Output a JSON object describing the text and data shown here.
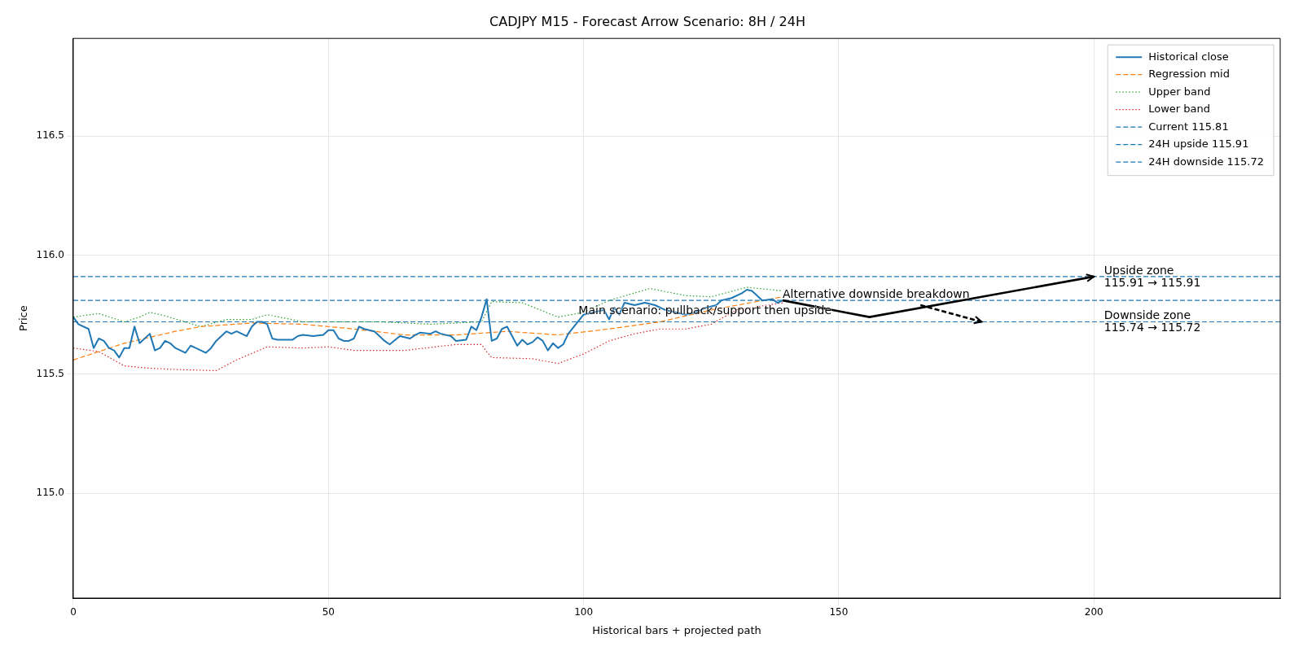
{
  "chart_data": {
    "type": "line",
    "title": "CADJPY M15 - Forecast Arrow Scenario: 8H / 24H",
    "xlabel": "Historical bars + projected path",
    "ylabel": "Price",
    "xlim": [
      0,
      236.5
    ],
    "ylim": [
      114.56,
      116.91
    ],
    "xticks": [
      0,
      50,
      100,
      150,
      200
    ],
    "yticks": [
      {
        "value": 115,
        "label": "115.0"
      },
      {
        "value": 115.5,
        "label": "115.5"
      },
      {
        "value": 116,
        "label": "116.0"
      },
      {
        "value": 116.5,
        "label": "116.5"
      }
    ],
    "grid": true,
    "legend": "top right",
    "series": [
      {
        "name": "Historical close",
        "color": "#1f77b4",
        "line_style": "solid",
        "x": [
          0,
          1,
          3,
          4,
          5,
          6,
          7,
          8,
          9,
          10,
          11,
          12,
          13,
          15,
          16,
          17,
          18,
          19,
          20,
          21,
          22,
          23,
          24,
          26,
          27,
          28,
          30,
          31,
          32,
          33,
          34,
          35,
          36,
          37,
          38,
          39,
          40,
          42,
          43,
          44,
          45,
          47,
          49,
          50,
          51,
          52,
          53,
          54,
          55,
          56,
          57,
          59,
          60,
          61,
          62,
          64,
          65,
          66,
          67,
          68,
          70,
          71,
          72,
          74,
          75,
          77,
          78,
          79,
          80,
          81,
          82,
          83,
          84,
          85,
          86,
          87,
          88,
          89,
          90,
          91,
          92,
          93,
          94,
          95,
          96,
          97,
          100,
          102,
          104,
          105,
          106,
          107,
          108,
          110,
          112,
          114,
          116,
          118,
          120,
          122,
          124,
          126,
          127,
          129,
          131,
          132,
          133,
          134,
          135,
          137,
          138,
          139
        ],
        "values": [
          115.74,
          115.71,
          115.69,
          115.61,
          115.65,
          115.64,
          115.61,
          115.6,
          115.57,
          115.61,
          115.61,
          115.7,
          115.63,
          115.67,
          115.6,
          115.61,
          115.64,
          115.63,
          115.61,
          115.6,
          115.59,
          115.62,
          115.61,
          115.59,
          115.61,
          115.64,
          115.68,
          115.67,
          115.68,
          115.67,
          115.66,
          115.7,
          115.72,
          115.72,
          115.71,
          115.65,
          115.645,
          115.645,
          115.645,
          115.66,
          115.665,
          115.66,
          115.665,
          115.685,
          115.685,
          115.65,
          115.64,
          115.64,
          115.65,
          115.7,
          115.69,
          115.68,
          115.66,
          115.64,
          115.625,
          115.66,
          115.655,
          115.65,
          115.665,
          115.675,
          115.67,
          115.68,
          115.67,
          115.66,
          115.64,
          115.645,
          115.7,
          115.685,
          115.74,
          115.815,
          115.64,
          115.65,
          115.69,
          115.7,
          115.66,
          115.62,
          115.645,
          115.625,
          115.635,
          115.655,
          115.64,
          115.6,
          115.63,
          115.61,
          115.625,
          115.67,
          115.75,
          115.76,
          115.77,
          115.73,
          115.78,
          115.75,
          115.8,
          115.79,
          115.8,
          115.79,
          115.77,
          115.76,
          115.75,
          115.76,
          115.78,
          115.79,
          115.81,
          115.82,
          115.84,
          115.855,
          115.85,
          115.83,
          115.81,
          115.815,
          115.8,
          115.81
        ]
      },
      {
        "name": "Regression mid",
        "color": "#ff7f0e",
        "line_style": "dashed",
        "x": [
          0,
          10,
          20,
          25,
          35,
          45,
          55,
          65,
          75,
          85,
          95,
          105,
          115,
          125,
          139
        ],
        "values": [
          115.56,
          115.63,
          115.68,
          115.7,
          115.715,
          115.71,
          115.69,
          115.665,
          115.665,
          115.68,
          115.665,
          115.69,
          115.72,
          115.77,
          115.825
        ]
      },
      {
        "name": "Upper band",
        "color": "#2ca02c",
        "line_style": "dotted",
        "x": [
          0,
          5,
          10,
          13,
          15,
          18,
          25,
          30,
          35,
          38,
          45,
          55,
          60,
          70,
          80,
          82,
          88,
          95,
          100,
          105,
          113,
          120,
          125,
          132,
          139
        ],
        "values": [
          115.74,
          115.755,
          115.72,
          115.74,
          115.76,
          115.745,
          115.7,
          115.73,
          115.73,
          115.75,
          115.72,
          115.72,
          115.72,
          115.71,
          115.72,
          115.805,
          115.8,
          115.74,
          115.76,
          115.81,
          115.86,
          115.83,
          115.825,
          115.865,
          115.85
        ]
      },
      {
        "name": "Lower band",
        "color": "#d62728",
        "line_style": "dotted",
        "x": [
          0,
          5,
          10,
          15,
          20,
          28,
          32,
          38,
          45,
          50,
          55,
          65,
          75,
          80,
          81,
          82,
          90,
          95,
          100,
          105,
          110,
          115,
          120,
          125,
          130,
          139
        ],
        "values": [
          115.61,
          115.595,
          115.535,
          115.525,
          115.52,
          115.515,
          115.56,
          115.615,
          115.61,
          115.615,
          115.6,
          115.6,
          115.625,
          115.625,
          115.595,
          115.57,
          115.565,
          115.545,
          115.585,
          115.64,
          115.67,
          115.69,
          115.69,
          115.71,
          115.77,
          115.8
        ]
      },
      {
        "color": "#000000",
        "line_style": "solid",
        "x": [
          139,
          156,
          200
        ],
        "values": [
          115.81,
          115.74,
          115.91
        ]
      },
      {
        "color": "#000000",
        "line_style": "dashed",
        "x": [
          166,
          178
        ],
        "values": [
          115.79,
          115.72
        ]
      }
    ],
    "ref_lines": [
      {
        "axis": "y",
        "value": 115.81,
        "label": "Current 115.81",
        "color": "#1f77b4",
        "line_style": "dashed"
      },
      {
        "axis": "y",
        "value": 115.91,
        "label": "24H upside 115.91",
        "color": "#1f77b4",
        "line_style": "dashed"
      },
      {
        "axis": "y",
        "value": 115.72,
        "label": "24H downside 115.72",
        "color": "#1f77b4",
        "line_style": "dashed"
      }
    ],
    "annotations": [
      {
        "text": "Main scenario: pullback/support then upside",
        "x": 99,
        "y": 115.74
      },
      {
        "text": "Alternative downside breakdown",
        "x": 139,
        "y": 115.81
      },
      {
        "text": "Upside zone\n115.91 → 115.91",
        "x": 202,
        "y": 115.91
      },
      {
        "text": "Downside zone\n115.74 → 115.72",
        "x": 202,
        "y": 115.72
      }
    ]
  }
}
